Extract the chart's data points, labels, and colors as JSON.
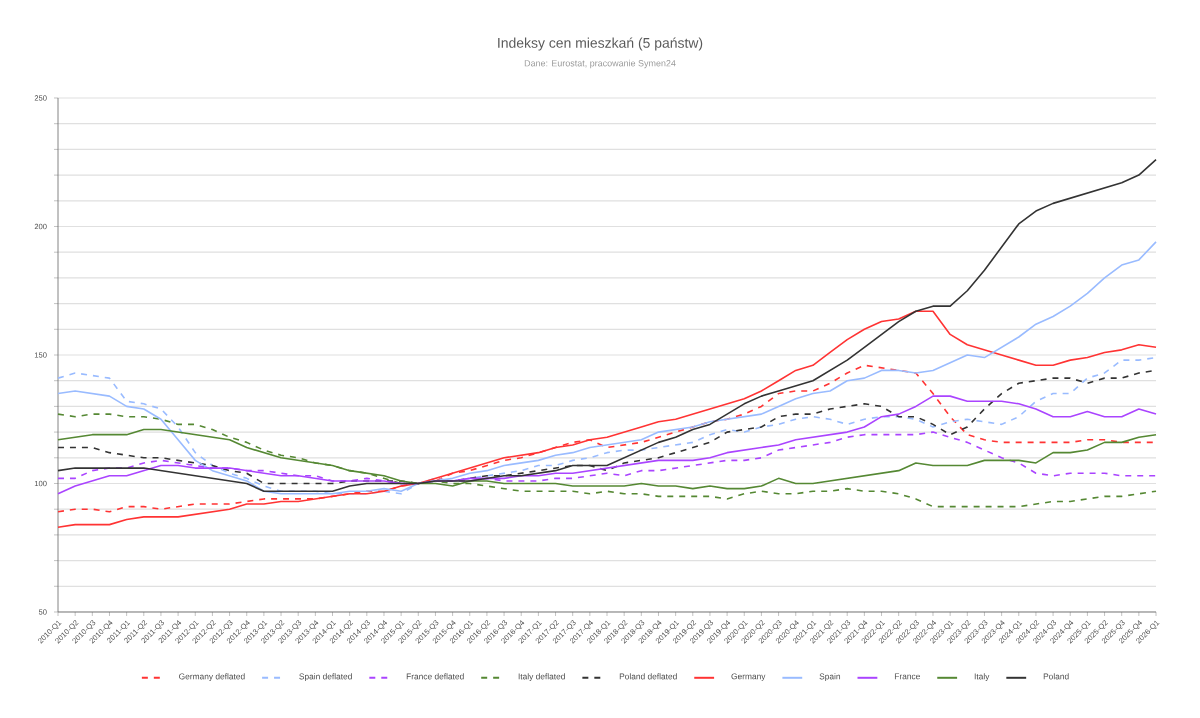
{
  "chart_data": {
    "type": "line",
    "title": "Indeksy cen mieszkań (5 państw)",
    "subtitle": "Dane: Eurostat, pracowanie Symen24",
    "categories": [
      "2010-Q1",
      "2010-Q2",
      "2010-Q3",
      "2010-Q4",
      "2011-Q1",
      "2011-Q2",
      "2011-Q3",
      "2011-Q4",
      "2012-Q1",
      "2012-Q2",
      "2012-Q3",
      "2012-Q4",
      "2013-Q1",
      "2013-Q2",
      "2013-Q3",
      "2013-Q4",
      "2014-Q1",
      "2014-Q2",
      "2014-Q3",
      "2014-Q4",
      "2015-Q1",
      "2015-Q2",
      "2015-Q3",
      "2015-Q4",
      "2016-Q1",
      "2016-Q2",
      "2016-Q3",
      "2016-Q4",
      "2017-Q1",
      "2017-Q2",
      "2017-Q3",
      "2017-Q4",
      "2018-Q1",
      "2018-Q2",
      "2018-Q3",
      "2018-Q4",
      "2019-Q1",
      "2019-Q2",
      "2019-Q3",
      "2019-Q4",
      "2020-Q1",
      "2020-Q2",
      "2020-Q3",
      "2020-Q4",
      "2021-Q1",
      "2021-Q2",
      "2021-Q3",
      "2021-Q4",
      "2022-Q1",
      "2022-Q2",
      "2022-Q3",
      "2022-Q4",
      "2023-Q1",
      "2023-Q2",
      "2023-Q3",
      "2023-Q4",
      "2024-Q1",
      "2024-Q2",
      "2024-Q3",
      "2024-Q4",
      "2025-Q1",
      "2025-Q2",
      "2025-Q3",
      "2025-Q4",
      "2026-Q1"
    ],
    "series": [
      {
        "name": "Germany deflated",
        "color": "#ff3333",
        "line_style": "dashed",
        "values": [
          89,
          90,
          90,
          89,
          91,
          91,
          90,
          91,
          92,
          92,
          92,
          93,
          94,
          94,
          94,
          94,
          95,
          96,
          97,
          97,
          99,
          100,
          101,
          104,
          105,
          107,
          109,
          110,
          112,
          114,
          116,
          117,
          114,
          115,
          116,
          118,
          120,
          122,
          124,
          125,
          127,
          130,
          135,
          136,
          136,
          139,
          143,
          146,
          145,
          144,
          143,
          135,
          126,
          119,
          117,
          116,
          116,
          116,
          116,
          116,
          117,
          117,
          116,
          116,
          116
        ]
      },
      {
        "name": "Spain deflated",
        "color": "#99bbff",
        "line_style": "dashed",
        "values": [
          141,
          143,
          142,
          141,
          132,
          131,
          129,
          122,
          112,
          107,
          104,
          102,
          99,
          97,
          97,
          97,
          96,
          96,
          96,
          97,
          96,
          100,
          102,
          101,
          102,
          103,
          104,
          105,
          107,
          107,
          109,
          110,
          112,
          113,
          113,
          114,
          115,
          116,
          119,
          121,
          120,
          122,
          123,
          125,
          126,
          125,
          123,
          125,
          126,
          126,
          125,
          122,
          124,
          125,
          124,
          123,
          126,
          132,
          135,
          135,
          141,
          143,
          148,
          148,
          149
        ]
      },
      {
        "name": "France deflated",
        "color": "#aa44ff",
        "line_style": "dashed",
        "values": [
          102,
          102,
          105,
          106,
          106,
          108,
          109,
          108,
          107,
          106,
          106,
          105,
          105,
          104,
          103,
          103,
          101,
          101,
          102,
          101,
          100,
          100,
          101,
          101,
          101,
          102,
          101,
          101,
          101,
          102,
          102,
          103,
          104,
          103,
          105,
          105,
          106,
          107,
          108,
          109,
          109,
          110,
          113,
          114,
          115,
          116,
          118,
          119,
          119,
          119,
          119,
          120,
          118,
          116,
          113,
          110,
          108,
          104,
          103,
          104,
          104,
          104,
          103,
          103,
          103
        ]
      },
      {
        "name": "Italy deflated",
        "color": "#558833",
        "line_style": "dashed",
        "values": [
          127,
          126,
          127,
          127,
          126,
          126,
          125,
          123,
          123,
          121,
          118,
          116,
          113,
          111,
          110,
          108,
          107,
          105,
          104,
          102,
          100,
          100,
          101,
          100,
          100,
          99,
          98,
          97,
          97,
          97,
          97,
          96,
          97,
          96,
          96,
          95,
          95,
          95,
          95,
          94,
          96,
          97,
          96,
          96,
          97,
          97,
          98,
          97,
          97,
          96,
          94,
          91,
          91,
          91,
          91,
          91,
          91,
          92,
          93,
          93,
          94,
          95,
          95,
          96,
          97
        ]
      },
      {
        "name": "Poland deflated",
        "color": "#333333",
        "line_style": "dashed",
        "values": [
          114,
          114,
          114,
          112,
          111,
          110,
          110,
          109,
          108,
          107,
          105,
          104,
          100,
          100,
          100,
          100,
          100,
          101,
          101,
          101,
          101,
          100,
          101,
          101,
          102,
          103,
          103,
          104,
          105,
          106,
          107,
          107,
          105,
          108,
          109,
          110,
          112,
          114,
          116,
          120,
          121,
          122,
          126,
          127,
          127,
          129,
          130,
          131,
          130,
          126,
          126,
          123,
          119,
          122,
          129,
          135,
          139,
          140,
          141,
          141,
          139,
          141,
          141,
          143,
          144
        ]
      },
      {
        "name": "Germany",
        "color": "#ff3333",
        "line_style": "solid",
        "values": [
          83,
          84,
          84,
          84,
          86,
          87,
          87,
          87,
          88,
          89,
          90,
          92,
          92,
          93,
          93,
          94,
          95,
          96,
          96,
          97,
          99,
          100,
          102,
          104,
          106,
          108,
          110,
          111,
          112,
          114,
          115,
          117,
          118,
          120,
          122,
          124,
          125,
          127,
          129,
          131,
          133,
          136,
          140,
          144,
          146,
          151,
          156,
          160,
          163,
          164,
          167,
          167,
          158,
          154,
          152,
          150,
          148,
          146,
          146,
          148,
          149,
          151,
          152,
          154,
          153
        ]
      },
      {
        "name": "Spain",
        "color": "#99bbff",
        "line_style": "solid",
        "values": [
          135,
          136,
          135,
          134,
          130,
          129,
          125,
          117,
          109,
          105,
          103,
          101,
          97,
          96,
          96,
          96,
          96,
          97,
          97,
          98,
          97,
          100,
          101,
          102,
          104,
          105,
          107,
          108,
          109,
          111,
          112,
          114,
          115,
          116,
          117,
          120,
          121,
          122,
          124,
          125,
          126,
          127,
          130,
          133,
          135,
          136,
          140,
          141,
          144,
          144,
          143,
          144,
          147,
          150,
          149,
          153,
          157,
          162,
          165,
          169,
          174,
          180,
          185,
          187,
          194
        ]
      },
      {
        "name": "France",
        "color": "#aa44ff",
        "line_style": "solid",
        "values": [
          96,
          99,
          101,
          103,
          103,
          105,
          107,
          107,
          106,
          106,
          106,
          105,
          104,
          103,
          103,
          102,
          101,
          101,
          101,
          101,
          100,
          100,
          101,
          101,
          102,
          102,
          102,
          103,
          103,
          104,
          104,
          105,
          106,
          107,
          108,
          109,
          109,
          109,
          110,
          112,
          113,
          114,
          115,
          117,
          118,
          119,
          120,
          122,
          126,
          127,
          130,
          134,
          134,
          132,
          132,
          132,
          131,
          129,
          126,
          126,
          128,
          126,
          126,
          129,
          127
        ]
      },
      {
        "name": "Italy",
        "color": "#558833",
        "line_style": "solid",
        "values": [
          117,
          118,
          119,
          119,
          119,
          121,
          121,
          120,
          119,
          118,
          117,
          114,
          112,
          110,
          109,
          108,
          107,
          105,
          104,
          103,
          101,
          100,
          100,
          99,
          101,
          101,
          100,
          100,
          100,
          100,
          99,
          99,
          99,
          99,
          100,
          99,
          99,
          98,
          99,
          98,
          98,
          99,
          102,
          100,
          100,
          101,
          102,
          103,
          104,
          105,
          108,
          107,
          107,
          107,
          109,
          109,
          109,
          108,
          112,
          112,
          113,
          116,
          116,
          118,
          119
        ]
      },
      {
        "name": "Poland",
        "color": "#333333",
        "line_style": "solid",
        "values": [
          105,
          106,
          106,
          106,
          106,
          106,
          105,
          104,
          103,
          102,
          101,
          100,
          97,
          97,
          97,
          97,
          97,
          99,
          100,
          100,
          100,
          100,
          101,
          101,
          101,
          102,
          103,
          103,
          104,
          105,
          107,
          107,
          107,
          110,
          113,
          116,
          118,
          121,
          123,
          127,
          131,
          134,
          136,
          138,
          140,
          144,
          148,
          153,
          158,
          163,
          167,
          169,
          169,
          175,
          183,
          192,
          201,
          206,
          209,
          211,
          213,
          215,
          217,
          220,
          226
        ]
      }
    ],
    "ylim": [
      50,
      250
    ],
    "yticks": [
      50,
      {
        "value": 60,
        "label": null
      },
      {
        "value": 70,
        "label": null
      },
      {
        "value": 80,
        "label": null
      },
      {
        "value": 90,
        "label": null
      },
      100,
      {
        "value": 110,
        "label": null
      },
      {
        "value": 120,
        "label": null
      },
      {
        "value": 130,
        "label": null
      },
      {
        "value": 140,
        "label": null
      },
      150,
      {
        "value": 160,
        "label": null
      },
      {
        "value": 170,
        "label": null
      },
      {
        "value": 180,
        "label": null
      },
      {
        "value": 190,
        "label": null
      },
      200,
      {
        "value": 210,
        "label": null
      },
      {
        "value": 220,
        "label": null
      },
      {
        "value": 230,
        "label": null
      },
      {
        "value": 240,
        "label": null
      },
      250
    ],
    "grid": "y",
    "legend": "bottom",
    "marker": "none"
  }
}
